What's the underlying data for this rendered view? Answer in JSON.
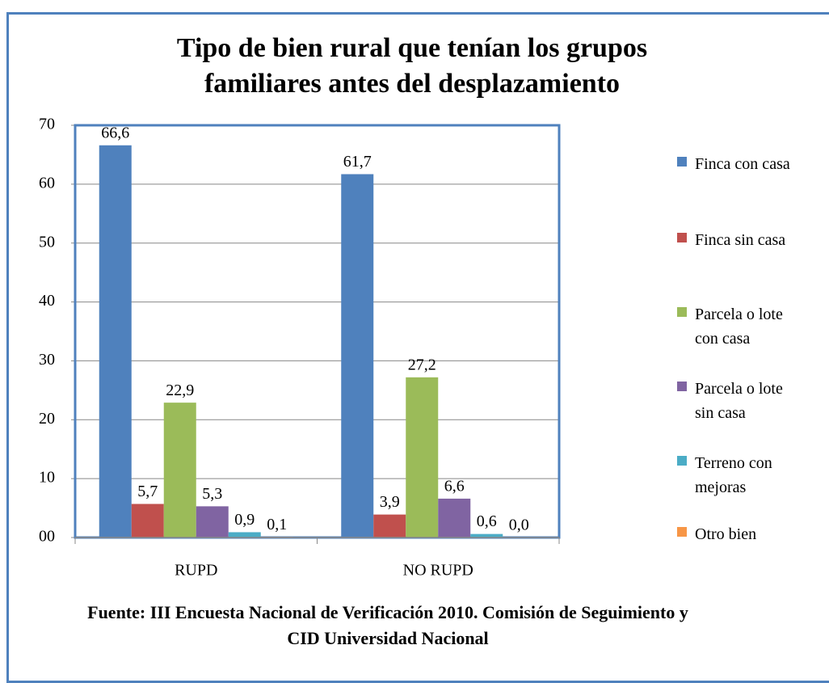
{
  "chart_data": {
    "type": "bar",
    "title": "Tipo de bien rural  que tenían los grupos familiares antes del desplazamiento",
    "source": "Fuente: III Encuesta Nacional de Verificación 2010. Comisión de Seguimiento y CID Universidad Nacional",
    "categories": [
      "RUPD",
      "NO RUPD"
    ],
    "series": [
      {
        "name": "Finca con casa",
        "color": "#4f81bd",
        "values": [
          66.6,
          61.7
        ],
        "value_labels": [
          "66,6",
          "61,7"
        ]
      },
      {
        "name": "Finca sin casa",
        "color": "#c0504d",
        "values": [
          5.7,
          3.9
        ],
        "value_labels": [
          "5,7",
          "3,9"
        ]
      },
      {
        "name": "Parcela o lote con casa",
        "color": "#9bbb59",
        "values": [
          22.9,
          27.2
        ],
        "value_labels": [
          "22,9",
          "27,2"
        ]
      },
      {
        "name": "Parcela o lote sin casa",
        "color": "#8064a2",
        "values": [
          5.3,
          6.6
        ],
        "value_labels": [
          "5,3",
          "6,6"
        ]
      },
      {
        "name": "Terreno con mejoras",
        "color": "#4bacc6",
        "values": [
          0.9,
          0.6
        ],
        "value_labels": [
          "0,9",
          "0,6"
        ]
      },
      {
        "name": "Otro bien",
        "color": "#f79646",
        "values": [
          0.1,
          0.0
        ],
        "value_labels": [
          "0,1",
          "0,0"
        ]
      }
    ],
    "ylim": [
      0,
      70
    ],
    "yticks": [
      {
        "value": 0,
        "label": "00"
      },
      10,
      20,
      30,
      40,
      50,
      60,
      70
    ],
    "grid": true,
    "legend": "right"
  }
}
